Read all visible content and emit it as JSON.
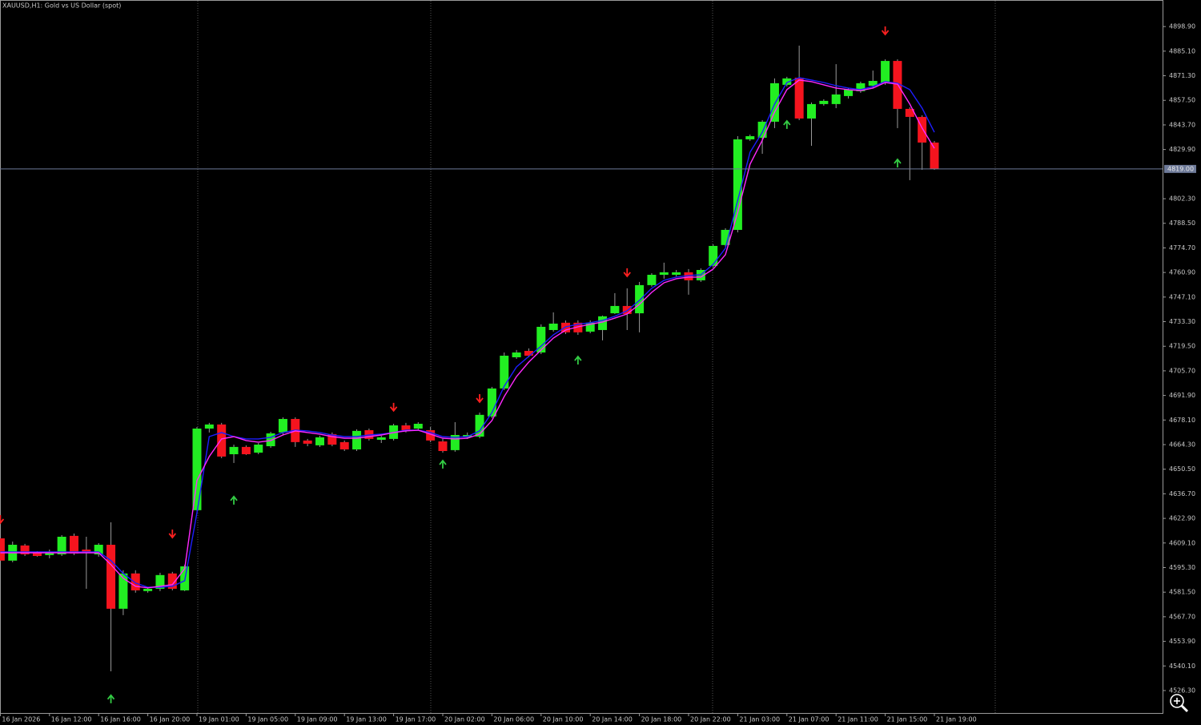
{
  "chart_data": {
    "type": "candlestick",
    "title": "XAUUSD,H1:  Gold vs US Dollar (spot)",
    "categories": [
      "16 Jan 2026",
      null,
      null,
      null,
      "16 Jan 12:00",
      null,
      null,
      null,
      "16 Jan 16:00",
      null,
      null,
      null,
      "16 Jan 20:00",
      null,
      null,
      null,
      "19 Jan 01:00",
      null,
      null,
      null,
      "19 Jan 05:00",
      null,
      null,
      null,
      "19 Jan 09:00",
      null,
      null,
      null,
      "19 Jan 13:00",
      null,
      null,
      null,
      "19 Jan 17:00",
      null,
      null,
      null,
      "20 Jan 02:00",
      null,
      null,
      null,
      "20 Jan 06:00",
      null,
      null,
      null,
      "20 Jan 10:00",
      null,
      null,
      null,
      "20 Jan 14:00",
      null,
      null,
      null,
      "20 Jan 18:00",
      null,
      null,
      null,
      "20 Jan 22:00",
      null,
      null,
      null,
      "21 Jan 03:00",
      null,
      null,
      null,
      "21 Jan 07:00",
      null,
      null,
      null,
      "21 Jan 11:00",
      null,
      null,
      null,
      "21 Jan 15:00",
      null,
      null,
      null,
      "21 Jan 19:00"
    ],
    "open": [
      4611.7,
      4599.2,
      4607.7,
      4604.1,
      4602.3,
      4602.7,
      4613.1,
      4605.4,
      4602.7,
      4608.1,
      4572.2,
      4592.0,
      4582.1,
      4583.4,
      4592.0,
      4582.5,
      4627.5,
      4673.3,
      4675.6,
      4658.9,
      4663.0,
      4659.8,
      4663.4,
      4671.1,
      4678.7,
      4666.6,
      4663.9,
      4670.2,
      4665.7,
      4661.6,
      4672.4,
      4667.0,
      4667.5,
      4675.1,
      4673.3,
      4672.4,
      4666.1,
      4661.2,
      4668.4,
      4668.8,
      4680.1,
      4695.8,
      4713.3,
      4716.9,
      4716.0,
      4728.6,
      4732.7,
      4732.7,
      4727.7,
      4728.6,
      4738.0,
      4742.1,
      4738.0,
      4753.8,
      4759.6,
      4759.6,
      4761.0,
      4756.5,
      4764.6,
      4776.3,
      4784.8,
      4835.6,
      4836.5,
      4845.5,
      4866.2,
      4870.2,
      4847.3,
      4855.4,
      4855.4,
      4859.9,
      4862.6,
      4865.7,
      4867.1,
      4879.6,
      4852.7,
      4848.2,
      4833.8
    ],
    "high": [
      4613.5,
      4609.9,
      4608.6,
      4604.5,
      4605.4,
      4613.5,
      4614.4,
      4612.6,
      4609.0,
      4620.7,
      4593.8,
      4593.8,
      4584.3,
      4592.4,
      4592.9,
      4596.9,
      4674.2,
      4676.5,
      4676.5,
      4664.3,
      4663.9,
      4665.2,
      4671.5,
      4679.6,
      4679.6,
      4667.5,
      4669.3,
      4671.1,
      4666.6,
      4672.9,
      4673.3,
      4669.3,
      4676.0,
      4676.5,
      4676.9,
      4674.2,
      4667.5,
      4676.9,
      4671.1,
      4682.3,
      4696.7,
      4716.0,
      4717.4,
      4718.3,
      4731.8,
      4738.5,
      4734.0,
      4734.0,
      4734.0,
      4736.7,
      4749.3,
      4752.0,
      4755.6,
      4760.5,
      4766.4,
      4762.3,
      4762.8,
      4763.2,
      4776.7,
      4785.7,
      4837.4,
      4838.3,
      4846.4,
      4869.8,
      4870.7,
      4888.2,
      4856.3,
      4858.1,
      4877.8,
      4864.4,
      4868.0,
      4874.2,
      4880.5,
      4880.5,
      4853.6,
      4849.1,
      4834.7
    ],
    "low": [
      4598.3,
      4598.3,
      4601.8,
      4601.4,
      4600.5,
      4601.8,
      4602.3,
      4583.4,
      4601.4,
      4537.1,
      4568.6,
      4581.2,
      4581.2,
      4582.1,
      4582.5,
      4582.1,
      4626.1,
      4671.1,
      4656.7,
      4654.0,
      4658.5,
      4658.9,
      4662.5,
      4669.7,
      4663.0,
      4663.4,
      4663.0,
      4663.4,
      4660.7,
      4660.7,
      4666.6,
      4665.2,
      4666.6,
      4671.1,
      4672.4,
      4665.7,
      4659.8,
      4660.3,
      4667.5,
      4667.9,
      4679.2,
      4694.9,
      4712.4,
      4713.3,
      4715.1,
      4727.7,
      4726.4,
      4725.9,
      4726.8,
      4722.8,
      4737.6,
      4728.6,
      4727.3,
      4752.9,
      4757.4,
      4758.7,
      4748.4,
      4755.6,
      4763.7,
      4775.4,
      4783.4,
      4834.7,
      4827.5,
      4841.9,
      4865.3,
      4846.4,
      4832.0,
      4854.5,
      4853.1,
      4858.5,
      4861.7,
      4864.4,
      4866.2,
      4841.9,
      4812.7,
      4818.5,
      4818.5
    ],
    "close": [
      4599.2,
      4608.1,
      4602.7,
      4601.8,
      4603.6,
      4612.6,
      4603.2,
      4603.6,
      4608.1,
      4572.2,
      4592.0,
      4582.5,
      4583.4,
      4591.1,
      4583.4,
      4596.0,
      4673.3,
      4675.6,
      4657.6,
      4663.0,
      4658.9,
      4664.3,
      4670.6,
      4678.7,
      4665.7,
      4664.8,
      4668.4,
      4664.3,
      4661.6,
      4672.0,
      4667.5,
      4668.4,
      4675.1,
      4672.4,
      4676.0,
      4666.6,
      4660.7,
      4669.7,
      4669.7,
      4681.0,
      4695.8,
      4714.2,
      4716.0,
      4714.2,
      4730.4,
      4732.2,
      4727.3,
      4727.3,
      4732.7,
      4736.3,
      4742.1,
      4737.6,
      4753.8,
      4759.6,
      4761.0,
      4761.0,
      4756.5,
      4762.3,
      4775.8,
      4784.8,
      4835.6,
      4837.4,
      4845.5,
      4867.1,
      4869.8,
      4847.3,
      4855.4,
      4857.2,
      4860.8,
      4863.5,
      4867.1,
      4868.4,
      4879.6,
      4852.7,
      4848.2,
      4833.8,
      4819.0
    ],
    "up_color": "#22ee22",
    "down_color": "#f5141e",
    "wick_color": "#9a9a9a",
    "lines": [
      {
        "color": "#1e1eff",
        "values": [
          4604.1,
          4604.1,
          4604.1,
          4604.1,
          4604.1,
          4604.1,
          4604.1,
          4604.1,
          4604.1,
          4599.2,
          4592.0,
          4586.6,
          4584.3,
          4584.3,
          4584.8,
          4587.9,
          4626.1,
          4668.8,
          4671.1,
          4668.8,
          4667.5,
          4667.5,
          4668.4,
          4671.1,
          4672.4,
          4672.0,
          4671.1,
          4669.7,
          4668.8,
          4668.8,
          4669.7,
          4670.2,
          4671.1,
          4672.4,
          4672.4,
          4671.1,
          4668.8,
          4668.4,
          4668.8,
          4672.0,
          4682.3,
          4697.1,
          4707.9,
          4713.8,
          4719.6,
          4725.9,
          4730.4,
          4731.8,
          4732.7,
          4734.0,
          4736.3,
          4739.4,
          4745.2,
          4752.0,
          4756.5,
          4758.3,
          4759.2,
          4759.6,
          4765.5,
          4774.5,
          4801.4,
          4828.4,
          4839.6,
          4855.4,
          4867.5,
          4870.2,
          4868.9,
          4867.5,
          4865.7,
          4864.4,
          4863.5,
          4865.3,
          4868.0,
          4867.1,
          4863.5,
          4853.1,
          4839.6
        ]
      },
      {
        "color": "#ff28ff",
        "values": [
          4603.6,
          4603.6,
          4603.6,
          4603.6,
          4603.6,
          4603.6,
          4603.6,
          4603.6,
          4603.6,
          4596.9,
          4589.3,
          4584.8,
          4583.9,
          4584.8,
          4585.7,
          4594.7,
          4644.1,
          4657.6,
          4667.5,
          4668.8,
          4666.6,
          4665.7,
          4666.6,
          4669.7,
          4672.0,
          4671.1,
          4670.2,
          4668.8,
          4667.9,
          4667.9,
          4668.8,
          4669.7,
          4671.1,
          4672.0,
          4672.4,
          4670.2,
          4667.9,
          4667.5,
          4667.9,
          4670.2,
          4677.8,
          4691.3,
          4702.5,
          4710.6,
          4717.4,
          4724.1,
          4728.6,
          4730.4,
          4731.8,
          4733.1,
          4735.3,
          4737.6,
          4743.0,
          4749.7,
          4755.1,
          4757.4,
          4758.3,
          4758.3,
          4762.8,
          4770.9,
          4794.7,
          4821.7,
          4835.1,
          4850.9,
          4863.5,
          4868.9,
          4868.0,
          4866.2,
          4864.4,
          4863.5,
          4863.0,
          4864.4,
          4867.5,
          4866.6,
          4855.4,
          4841.9,
          4830.6
        ]
      }
    ],
    "signals": [
      {
        "direction": "down",
        "color": "#ff2020",
        "values": [
          4622.5,
          null,
          null,
          null,
          null,
          null,
          null,
          null,
          null,
          null,
          null,
          null,
          null,
          null,
          4614.4,
          null,
          null,
          null,
          null,
          null,
          null,
          null,
          null,
          null,
          null,
          null,
          null,
          null,
          null,
          null,
          null,
          null,
          4685.5,
          null,
          null,
          null,
          null,
          null,
          null,
          4690.4,
          null,
          null,
          null,
          null,
          null,
          null,
          null,
          null,
          null,
          null,
          null,
          4761.0,
          null,
          null,
          null,
          null,
          null,
          null,
          null,
          null,
          null,
          null,
          null,
          null,
          null,
          null,
          null,
          null,
          null,
          null,
          null,
          null,
          4896.7,
          null,
          null,
          null,
          null
        ]
      },
      {
        "direction": "up",
        "color": "#33cc44",
        "values": [
          null,
          null,
          null,
          null,
          null,
          null,
          null,
          null,
          null,
          4521.4,
          null,
          null,
          null,
          null,
          null,
          null,
          null,
          null,
          null,
          4632.9,
          null,
          null,
          null,
          null,
          null,
          null,
          null,
          null,
          null,
          null,
          null,
          null,
          null,
          null,
          null,
          null,
          4653.1,
          null,
          null,
          null,
          null,
          null,
          null,
          null,
          null,
          null,
          null,
          4711.5,
          null,
          null,
          null,
          null,
          null,
          null,
          null,
          null,
          null,
          null,
          null,
          null,
          null,
          null,
          null,
          null,
          4843.7,
          null,
          null,
          null,
          null,
          null,
          null,
          null,
          null,
          4822.1,
          null,
          null,
          null
        ]
      }
    ],
    "current_price": {
      "value": 4819.0,
      "label": "4819.00"
    },
    "ylim": [
      4513.7,
      4913.8
    ],
    "yticks": [
      {
        "value": 4526.3,
        "label": "4526.30"
      },
      {
        "value": 4540.1,
        "label": "4540.10"
      },
      {
        "value": 4553.9,
        "label": "4553.90"
      },
      {
        "value": 4567.7,
        "label": "4567.70"
      },
      {
        "value": 4581.5,
        "label": "4581.50"
      },
      {
        "value": 4595.3,
        "label": "4595.30"
      },
      {
        "value": 4609.1,
        "label": "4609.10"
      },
      {
        "value": 4622.9,
        "label": "4622.90"
      },
      {
        "value": 4636.7,
        "label": "4636.70"
      },
      {
        "value": 4650.5,
        "label": "4650.50"
      },
      {
        "value": 4664.3,
        "label": "4664.30"
      },
      {
        "value": 4678.1,
        "label": "4678.10"
      },
      {
        "value": 4691.9,
        "label": "4691.90"
      },
      {
        "value": 4705.7,
        "label": "4705.70"
      },
      {
        "value": 4719.5,
        "label": "4719.50"
      },
      {
        "value": 4733.3,
        "label": "4733.30"
      },
      {
        "value": 4747.1,
        "label": "4747.10"
      },
      {
        "value": 4760.9,
        "label": "4760.90"
      },
      {
        "value": 4774.7,
        "label": "4774.70"
      },
      {
        "value": 4788.5,
        "label": "4788.50"
      },
      {
        "value": 4802.3,
        "label": "4802.30"
      },
      {
        "value": 4829.9,
        "label": "4829.90"
      },
      {
        "value": 4843.7,
        "label": "4843.70"
      },
      {
        "value": 4857.5,
        "label": "4857.50"
      },
      {
        "value": 4871.3,
        "label": "4871.30"
      },
      {
        "value": 4885.1,
        "label": "4885.10"
      },
      {
        "value": 4898.9,
        "label": "4898.90"
      }
    ]
  }
}
